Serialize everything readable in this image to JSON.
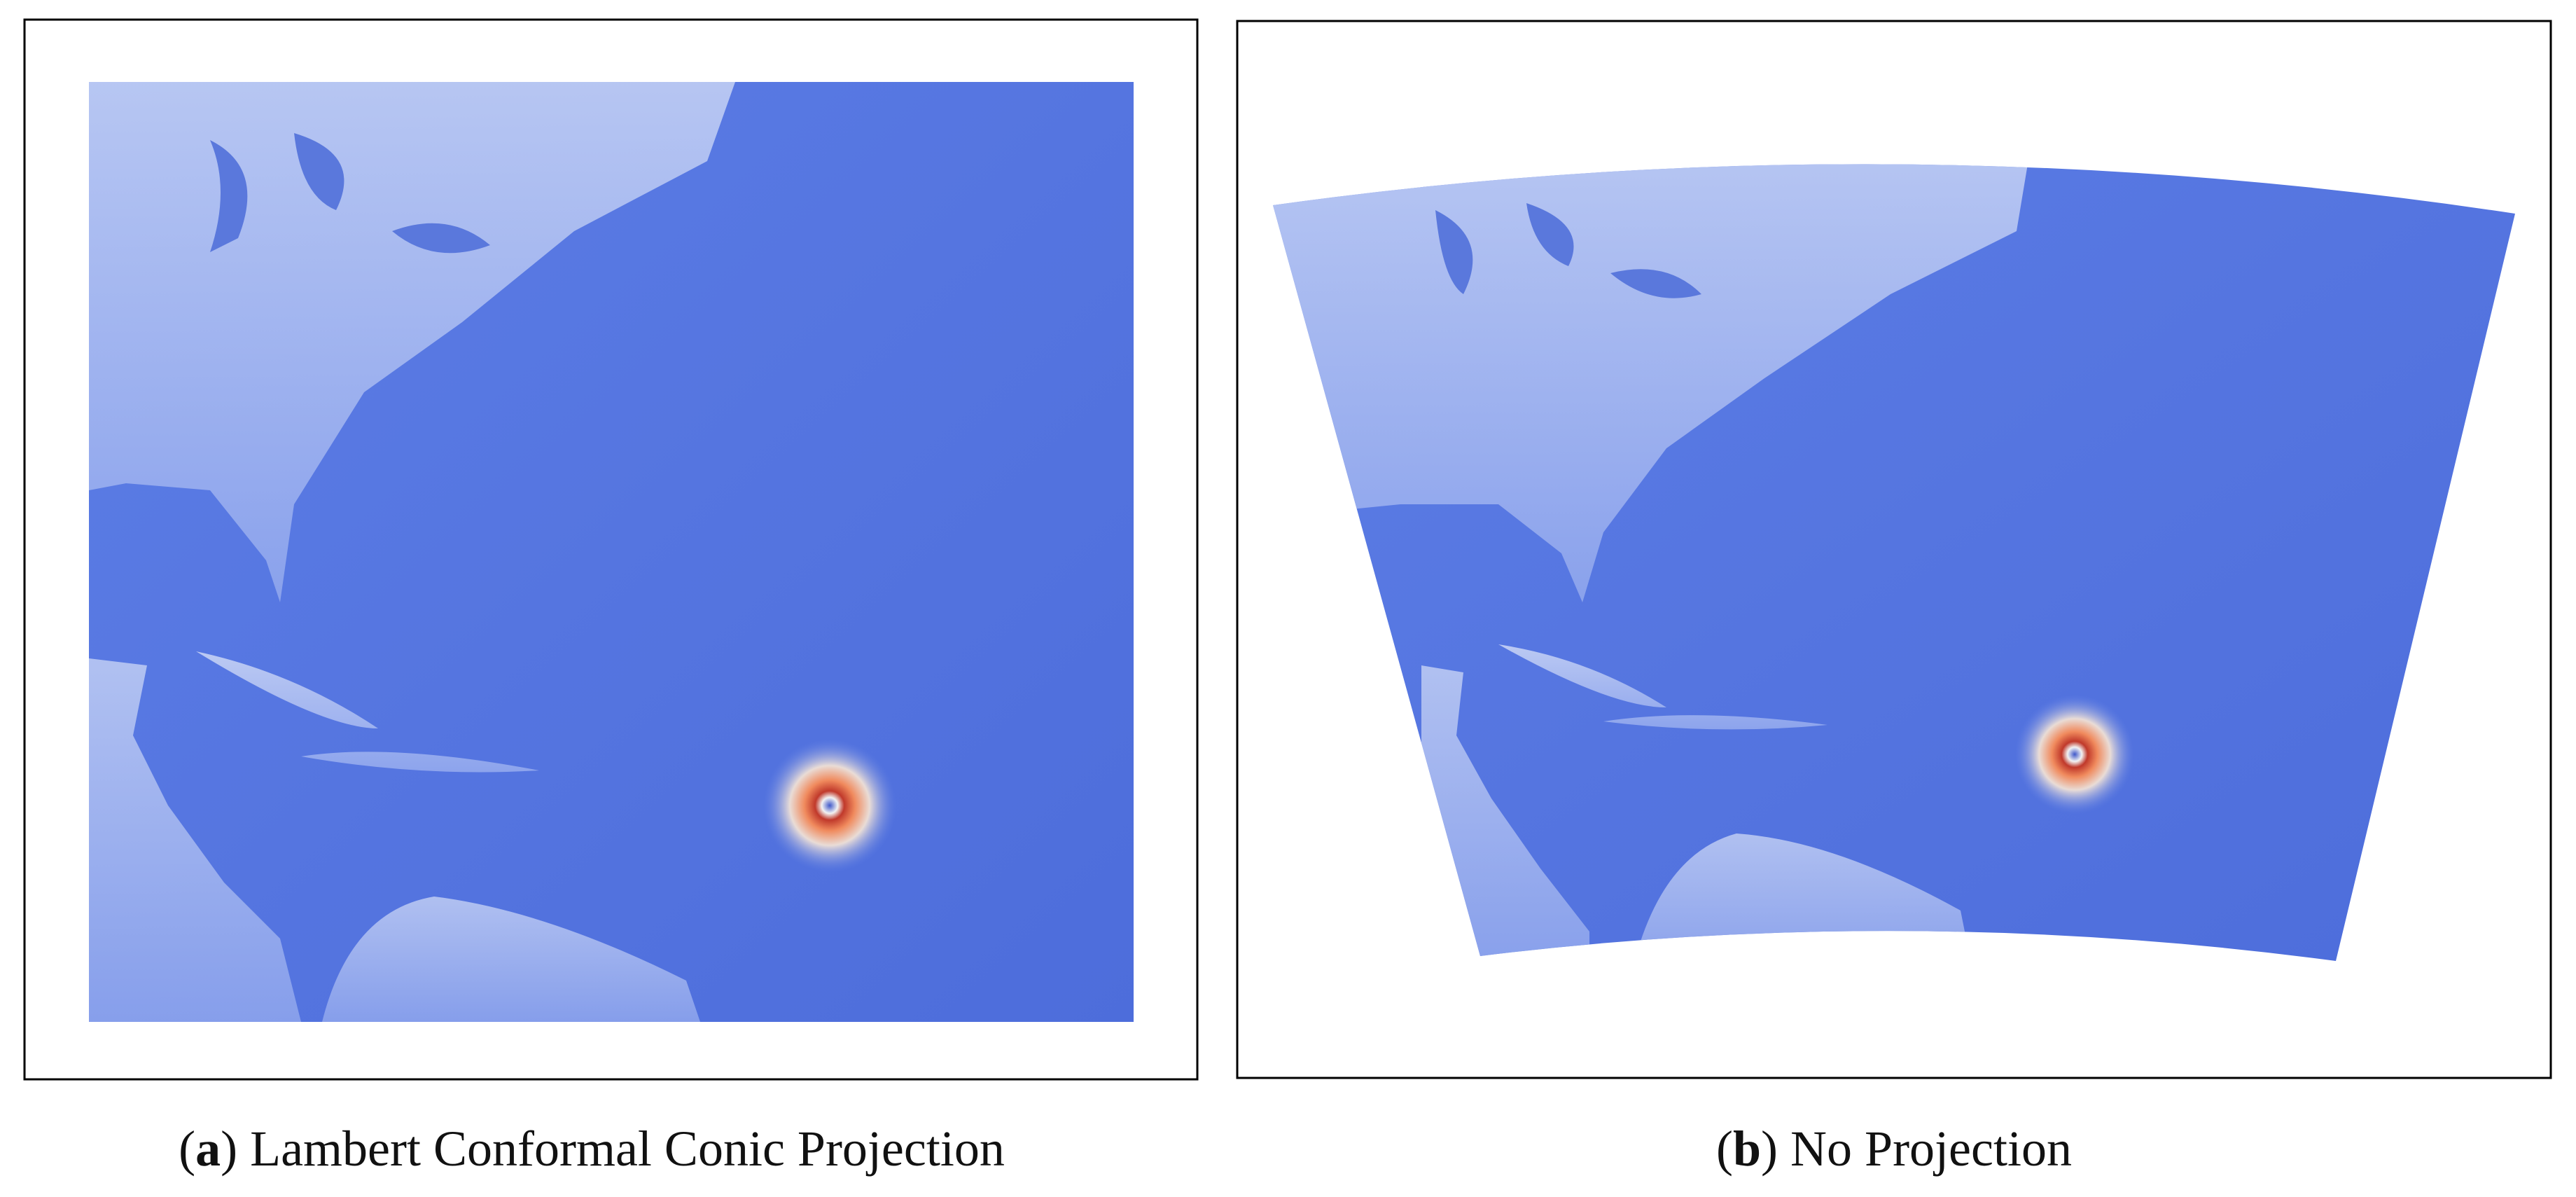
{
  "panels": [
    {
      "caption": [
        "(",
        "a",
        ") Lambert Conformal Conic Projection"
      ]
    },
    {
      "caption": [
        "(",
        "b",
        ") No Projection"
      ]
    }
  ]
}
